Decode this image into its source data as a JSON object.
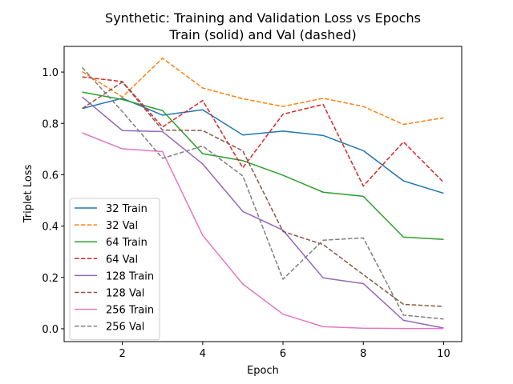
{
  "chart_data": {
    "type": "line",
    "title": "Synthetic: Training and Validation Loss vs Epochs",
    "subtitle": "Train (solid) and Val (dashed)",
    "xlabel": "Epoch",
    "ylabel": "Triplet Loss",
    "xlim": [
      0.55,
      10.45
    ],
    "ylim": [
      -0.05,
      1.1
    ],
    "xticks": [
      2,
      4,
      6,
      8,
      10
    ],
    "yticks": [
      0.0,
      0.2,
      0.4,
      0.6,
      0.8,
      1.0
    ],
    "x": [
      1,
      2,
      3,
      4,
      5,
      6,
      7,
      8,
      9,
      10
    ],
    "grid": false,
    "legend_position": "lower-left",
    "series": [
      {
        "name": "32 Train",
        "color": "#1f77b4",
        "style": "solid",
        "values": [
          0.858,
          0.898,
          0.832,
          0.853,
          0.755,
          0.77,
          0.753,
          0.694,
          0.576,
          0.528
        ]
      },
      {
        "name": "32 Val",
        "color": "#ff7f0e",
        "style": "dashed",
        "values": [
          1.002,
          0.903,
          1.054,
          0.938,
          0.896,
          0.866,
          0.898,
          0.866,
          0.796,
          0.822
        ]
      },
      {
        "name": "64 Train",
        "color": "#2ca02c",
        "style": "solid",
        "values": [
          0.922,
          0.893,
          0.85,
          0.682,
          0.655,
          0.598,
          0.532,
          0.516,
          0.357,
          0.348
        ]
      },
      {
        "name": "64 Val",
        "color": "#d62728",
        "style": "dashed",
        "values": [
          0.981,
          0.963,
          0.786,
          0.889,
          0.627,
          0.836,
          0.874,
          0.556,
          0.728,
          0.57
        ]
      },
      {
        "name": "128 Train",
        "color": "#9467bd",
        "style": "solid",
        "values": [
          0.903,
          0.772,
          0.768,
          0.642,
          0.457,
          0.384,
          0.198,
          0.176,
          0.033,
          0.003
        ]
      },
      {
        "name": "128 Val",
        "color": "#8c564b",
        "style": "dashed",
        "values": [
          0.858,
          0.961,
          0.774,
          0.772,
          0.693,
          0.379,
          0.328,
          0.211,
          0.095,
          0.087
        ]
      },
      {
        "name": "256 Train",
        "color": "#e377c2",
        "style": "solid",
        "values": [
          0.763,
          0.701,
          0.69,
          0.364,
          0.174,
          0.057,
          0.008,
          0.002,
          0.001,
          0.001
        ]
      },
      {
        "name": "256 Val",
        "color": "#7f7f7f",
        "style": "dashed",
        "values": [
          1.018,
          0.846,
          0.664,
          0.712,
          0.595,
          0.193,
          0.345,
          0.354,
          0.053,
          0.038
        ]
      }
    ]
  }
}
